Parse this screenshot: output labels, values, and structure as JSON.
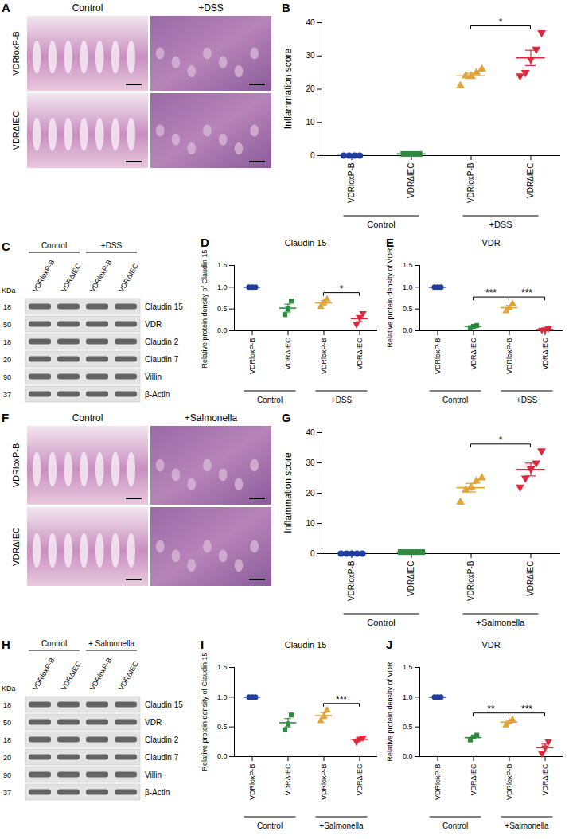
{
  "chart_data": [
    {
      "panel": "B",
      "type": "scatter",
      "y_label": "Inflammation score",
      "categories": [
        "VDRloxP-B",
        "VDRΔIEC",
        "VDRloxP-B",
        "VDRΔIEC"
      ],
      "groups": [
        "Control",
        "+DSS"
      ],
      "colors": [
        "#1f3c9c",
        "#2e8b3e",
        "#e0a43a",
        "#e0283c"
      ],
      "markers": [
        "circle",
        "square",
        "triangle",
        "triangle-down"
      ],
      "values": [
        [
          0,
          0,
          0,
          0
        ],
        [
          0.5,
          0.5,
          0.5,
          0.5
        ],
        [
          21,
          24,
          24,
          25,
          26
        ],
        [
          24,
          25,
          29,
          32,
          37
        ]
      ],
      "mean": [
        0,
        0.5,
        24,
        29.4
      ],
      "sem": [
        0,
        0,
        0.8,
        2.3
      ],
      "significance": [
        {
          "from": 2,
          "to": 3,
          "label": "*"
        }
      ],
      "ylim": [
        0,
        40
      ],
      "yticks": [
        0,
        10,
        20,
        30,
        40
      ]
    },
    {
      "panel": "D",
      "type": "scatter",
      "title": "Claudin 15",
      "y_label": "Relative protein density of Claudin 15",
      "categories": [
        "VDRloxP-B",
        "VDRΔIEC",
        "VDRloxP-B",
        "VDRΔIEC"
      ],
      "groups": [
        "Control",
        "+DSS"
      ],
      "colors": [
        "#1f3c9c",
        "#2e8b3e",
        "#e0a43a",
        "#e0283c"
      ],
      "markers": [
        "circle",
        "square",
        "triangle",
        "triangle-down"
      ],
      "values": [
        [
          1,
          1,
          1
        ],
        [
          0.37,
          0.5,
          0.68
        ],
        [
          0.55,
          0.65,
          0.72
        ],
        [
          0.15,
          0.3,
          0.4
        ]
      ],
      "mean": [
        1,
        0.52,
        0.64,
        0.28
      ],
      "sem": [
        0,
        0.09,
        0.05,
        0.07
      ],
      "significance": [
        {
          "from": 2,
          "to": 3,
          "label": "*"
        }
      ],
      "ylim": [
        0,
        1.5
      ],
      "yticks": [
        {
          "value": 0,
          "label": "0.0"
        },
        0.5,
        {
          "value": 1,
          "label": "1.0"
        },
        1.5
      ]
    },
    {
      "panel": "E",
      "type": "scatter",
      "title": "VDR",
      "y_label": "Relative protein density of VDR",
      "categories": [
        "VDRloxP-B",
        "VDRΔIEC",
        "VDRloxP-B",
        "VDRΔIEC"
      ],
      "groups": [
        "Control",
        "+DSS"
      ],
      "colors": [
        "#1f3c9c",
        "#2e8b3e",
        "#e0a43a",
        "#e0283c"
      ],
      "markers": [
        "circle",
        "square",
        "triangle",
        "triangle-down"
      ],
      "values": [
        [
          1,
          1,
          1
        ],
        [
          0.07,
          0.1,
          0.12
        ],
        [
          0.45,
          0.52,
          0.62
        ],
        [
          0.02,
          0.03,
          0.05
        ]
      ],
      "mean": [
        1,
        0.1,
        0.53,
        0.03
      ],
      "sem": [
        0,
        0.015,
        0.05,
        0.01
      ],
      "significance": [
        {
          "from": 1,
          "to": 2,
          "label": "***"
        },
        {
          "from": 2,
          "to": 3,
          "label": "***"
        }
      ],
      "ylim": [
        0,
        1.5
      ],
      "yticks": [
        {
          "value": 0,
          "label": "0.0"
        },
        0.5,
        {
          "value": 1,
          "label": "1.0"
        },
        1.5
      ]
    },
    {
      "panel": "G",
      "type": "scatter",
      "y_label": "Inflammation score",
      "categories": [
        "VDRloxP-B",
        "VDRΔIEC",
        "VDRloxP-B",
        "VDRΔIEC"
      ],
      "groups": [
        "Control",
        "+Salmonella"
      ],
      "colors": [
        "#1f3c9c",
        "#2e8b3e",
        "#e0a43a",
        "#e0283c"
      ],
      "markers": [
        "circle",
        "square",
        "triangle",
        "triangle-down"
      ],
      "values": [
        [
          0,
          0,
          0,
          0,
          0
        ],
        [
          0.5,
          0.5,
          0.5,
          0.5,
          0.5
        ],
        [
          17,
          21,
          22,
          24,
          25
        ],
        [
          22,
          25,
          28,
          30,
          34
        ]
      ],
      "mean": [
        0,
        0.5,
        21.8,
        27.8
      ],
      "sem": [
        0,
        0,
        1.4,
        2.1
      ],
      "significance": [
        {
          "from": 2,
          "to": 3,
          "label": "*"
        }
      ],
      "ylim": [
        0,
        40
      ],
      "yticks": [
        0,
        10,
        20,
        30,
        40
      ]
    },
    {
      "panel": "I",
      "type": "scatter",
      "title": "Claudin 15",
      "y_label": "Relative protein density of Claudin 15",
      "categories": [
        "VDRloxP-B",
        "VDRΔIEC",
        "VDRloxP-B",
        "VDRΔIEC"
      ],
      "groups": [
        "Control",
        "+Salmonella"
      ],
      "colors": [
        "#1f3c9c",
        "#2e8b3e",
        "#e0a43a",
        "#e0283c"
      ],
      "markers": [
        "circle",
        "square",
        "triangle",
        "triangle-down"
      ],
      "values": [
        [
          1,
          1,
          1
        ],
        [
          0.45,
          0.55,
          0.7
        ],
        [
          0.6,
          0.68,
          0.78
        ],
        [
          0.25,
          0.3,
          0.32
        ]
      ],
      "mean": [
        1,
        0.57,
        0.69,
        0.29
      ],
      "sem": [
        0,
        0.07,
        0.05,
        0.02
      ],
      "significance": [
        {
          "from": 2,
          "to": 3,
          "label": "***"
        }
      ],
      "ylim": [
        0,
        1.5
      ],
      "yticks": [
        {
          "value": 0,
          "label": "0.0"
        },
        0.5,
        {
          "value": 1,
          "label": "1.0"
        },
        1.5
      ]
    },
    {
      "panel": "J",
      "type": "scatter",
      "title": "VDR",
      "y_label": "Relative protein density of VDR",
      "categories": [
        "VDRloxP-B",
        "VDRΔIEC",
        "VDRloxP-B",
        "VDRΔIEC"
      ],
      "groups": [
        "Control",
        "+Salmonella"
      ],
      "colors": [
        "#1f3c9c",
        "#2e8b3e",
        "#e0a43a",
        "#e0283c"
      ],
      "markers": [
        "circle",
        "square",
        "triangle",
        "triangle-down"
      ],
      "values": [
        [
          1,
          1,
          1
        ],
        [
          0.28,
          0.33,
          0.36
        ],
        [
          0.53,
          0.58,
          0.62
        ],
        [
          0.05,
          0.15,
          0.25
        ]
      ],
      "mean": [
        1,
        0.32,
        0.58,
        0.15
      ],
      "sem": [
        0,
        0.02,
        0.03,
        0.06
      ],
      "significance": [
        {
          "from": 1,
          "to": 2,
          "label": "**"
        },
        {
          "from": 2,
          "to": 3,
          "label": "***"
        }
      ],
      "ylim": [
        0,
        1.5
      ],
      "yticks": [
        {
          "value": 0,
          "label": "0.0"
        },
        0.5,
        {
          "value": 1,
          "label": "1.0"
        },
        1.5
      ]
    }
  ],
  "images": [
    {
      "panel": "A",
      "columns": [
        "Control",
        "+DSS"
      ],
      "rows": [
        "VDRloxP-B",
        "VDRΔIEC"
      ]
    },
    {
      "panel": "F",
      "columns": [
        "Control",
        "+Salmonella"
      ],
      "rows": [
        "VDRloxP-B",
        "VDRΔIEC"
      ]
    }
  ],
  "blots": [
    {
      "panel": "C",
      "unit": "KDa",
      "groups": [
        "Control",
        "+DSS"
      ],
      "columns": [
        "VDRloxP-B",
        "VDRΔIEC",
        "VDRloxP-B",
        "VDRΔIEC"
      ],
      "rows": [
        {
          "protein": "Claudin 15",
          "kda": 18
        },
        {
          "protein": "VDR",
          "kda": 50
        },
        {
          "protein": "Claudin 2",
          "kda": 18
        },
        {
          "protein": "Claudin 7",
          "kda": 20
        },
        {
          "protein": "Villin",
          "kda": 90
        },
        {
          "protein": "β-Actin",
          "kda": 37
        }
      ]
    },
    {
      "panel": "H",
      "unit": "KDa",
      "groups": [
        "Control",
        "+ Salmonella"
      ],
      "columns": [
        "VDRloxP-B",
        "VDRΔIEC",
        "VDRloxP-B",
        "VDRΔIEC"
      ],
      "rows": [
        {
          "protein": "Claudin 15",
          "kda": 18
        },
        {
          "protein": "VDR",
          "kda": 50
        },
        {
          "protein": "Claudin 2",
          "kda": 18
        },
        {
          "protein": "Claudin 7",
          "kda": 20
        },
        {
          "protein": "Villin",
          "kda": 90
        },
        {
          "protein": "β-Actin",
          "kda": 37
        }
      ]
    }
  ]
}
